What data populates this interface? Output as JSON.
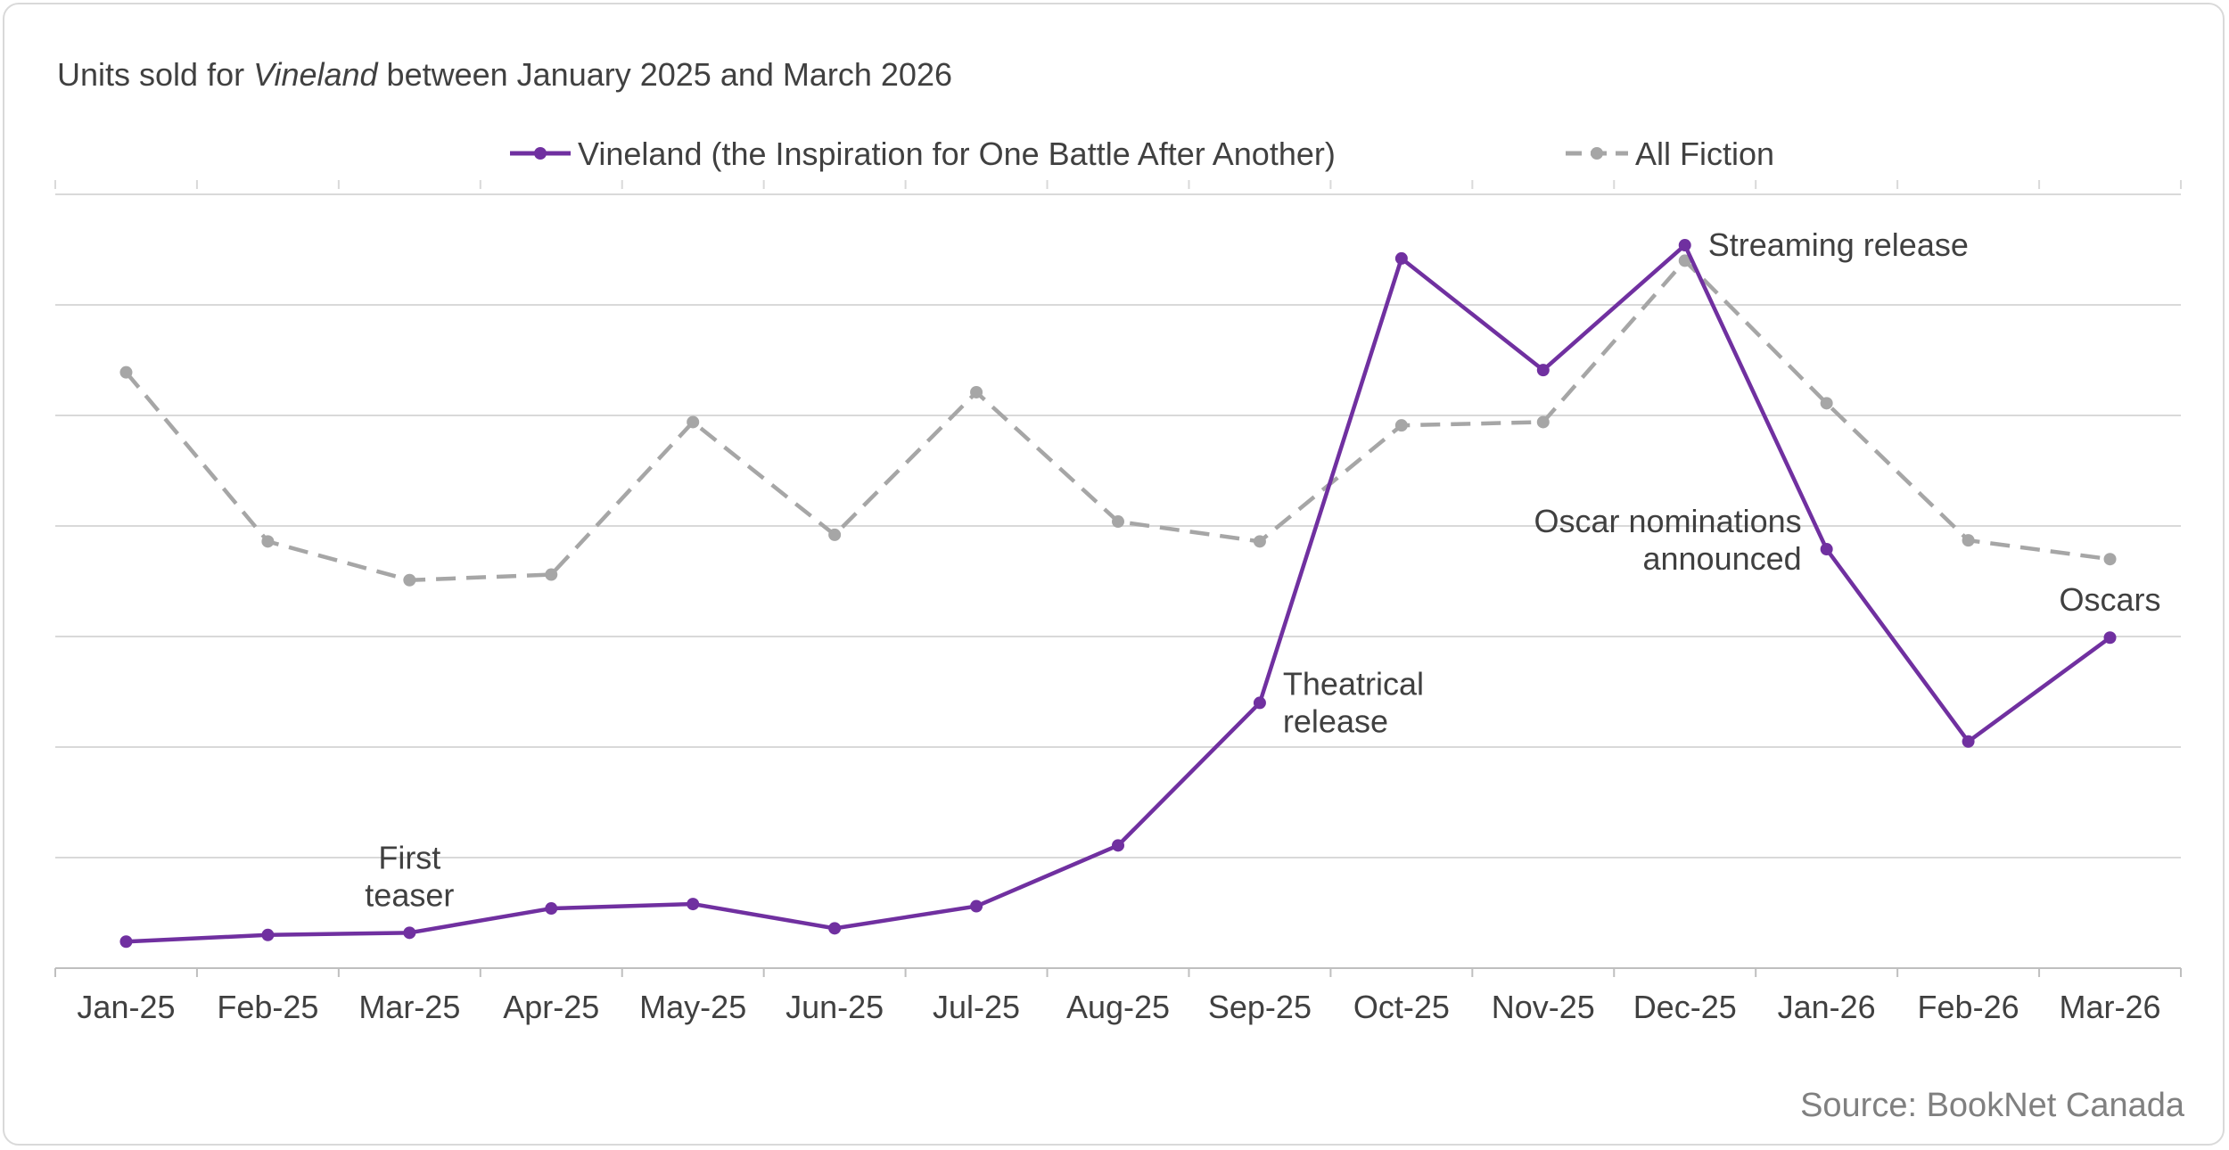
{
  "chart_data": {
    "type": "line",
    "title_prefix": "Units sold for ",
    "title_italic": "Vineland",
    "title_suffix": " between January 2025 and March 2026",
    "categories": [
      "Jan-25",
      "Feb-25",
      "Mar-25",
      "Apr-25",
      "May-25",
      "Jun-25",
      "Jul-25",
      "Aug-25",
      "Sep-25",
      "Oct-25",
      "Nov-25",
      "Dec-25",
      "Jan-26",
      "Feb-26",
      "Mar-26"
    ],
    "series": [
      {
        "name": "Vineland (the Inspiration for One Battle After Another)",
        "color": "#7030a0",
        "dash": "solid",
        "values": [
          2.4,
          3.0,
          3.2,
          5.4,
          5.8,
          3.6,
          5.6,
          11.1,
          24.0,
          64.2,
          54.1,
          65.4,
          37.9,
          20.5,
          29.9
        ]
      },
      {
        "name": "All Fiction",
        "color": "#a6a6a6",
        "dash": "dashed",
        "values": [
          53.9,
          38.6,
          35.1,
          35.6,
          49.4,
          39.2,
          52.1,
          40.4,
          38.6,
          49.1,
          49.4,
          64.0,
          51.1,
          38.7,
          37.0
        ]
      }
    ],
    "annotations": [
      {
        "series": 0,
        "index": 2,
        "lines": [
          "First",
          "teaser"
        ],
        "anchor": "middle",
        "position": "above"
      },
      {
        "series": 0,
        "index": 8,
        "lines": [
          "Theatrical",
          "release"
        ],
        "anchor": "start",
        "position": "right"
      },
      {
        "series": 0,
        "index": 11,
        "lines": [
          "Streaming release"
        ],
        "anchor": "start",
        "position": "right"
      },
      {
        "series": 0,
        "index": 12,
        "lines": [
          "Oscar nominations",
          "announced"
        ],
        "anchor": "end",
        "position": "left"
      },
      {
        "series": 0,
        "index": 14,
        "lines": [
          "Oscars"
        ],
        "anchor": "middle",
        "position": "above"
      }
    ],
    "ylim": [
      0,
      70
    ],
    "y_grid_step": 10,
    "grid": true,
    "y_tick_labels_shown": false,
    "legend_position": "top-center",
    "source": "Source: BookNet Canada"
  }
}
